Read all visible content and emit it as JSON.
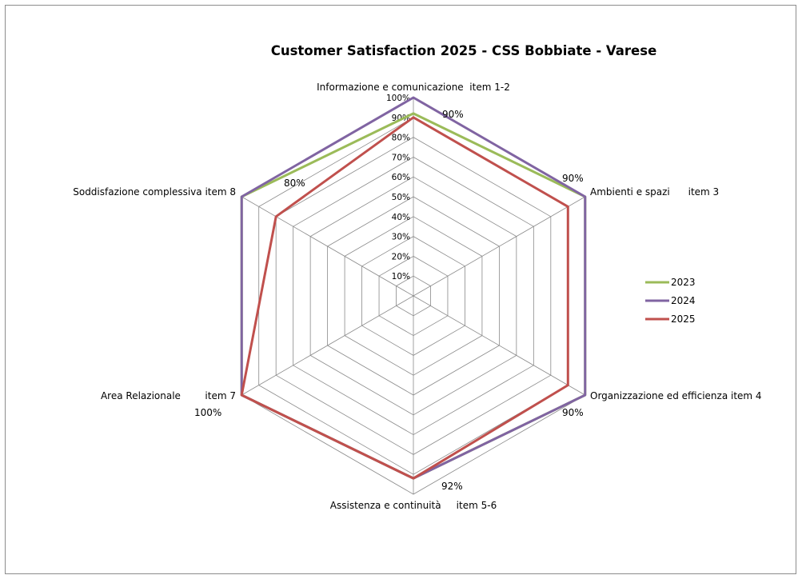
{
  "chart_data": {
    "type": "radar",
    "title": "Customer Satisfaction 2025 -  CSS Bobbiate - Varese",
    "categories": [
      "Informazione e comunicazione  item 1-2",
      "Ambienti e spazi      item 3",
      "Organizzazione ed efficienza item 4",
      "Assistenza e continuità     item 5-6",
      "Area Relazionale        item 7",
      "Soddisfazione complessiva item 8"
    ],
    "radial_ticks": [
      "10%",
      "20%",
      "30%",
      "40%",
      "50%",
      "60%",
      "70%",
      "80%",
      "90%",
      "100%"
    ],
    "rlim": [
      0,
      100
    ],
    "grid": true,
    "legend_position": "right",
    "series": [
      {
        "name": "2023",
        "color": "#9bbb59",
        "values": [
          92,
          100,
          100,
          92,
          100,
          100
        ]
      },
      {
        "name": "2024",
        "color": "#8064a2",
        "values": [
          100,
          100,
          100,
          92,
          100,
          100
        ]
      },
      {
        "name": "2025",
        "color": "#c0504d",
        "values": [
          90,
          90,
          90,
          92,
          100,
          80
        ]
      }
    ],
    "data_labels": [
      "90%",
      "90%",
      "90%",
      "92%",
      "100%",
      "80%"
    ]
  }
}
